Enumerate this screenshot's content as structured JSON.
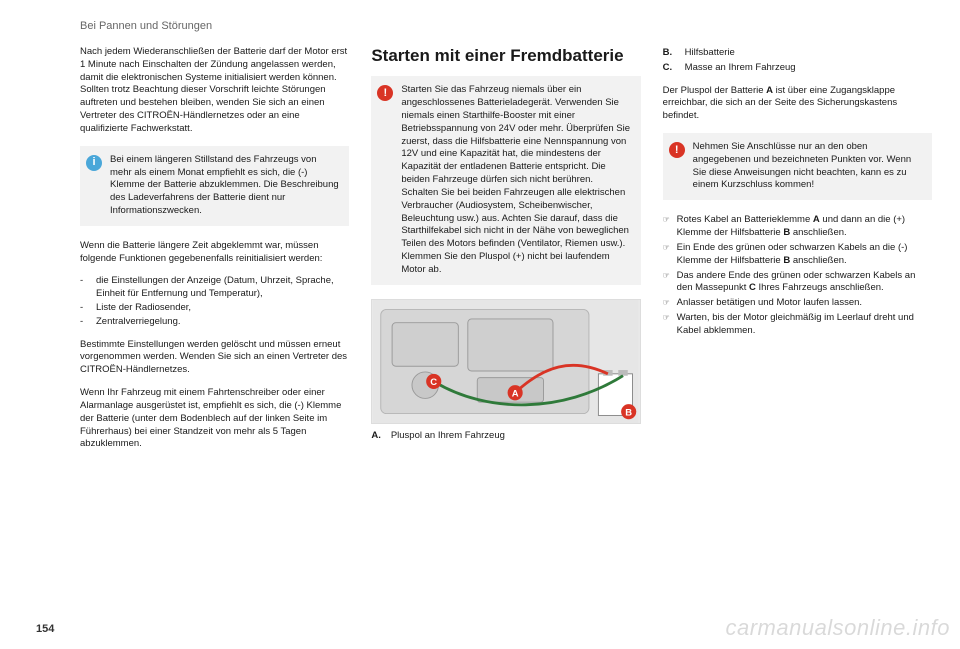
{
  "section_header": "Bei Pannen und Störungen",
  "page_number": "154",
  "watermark": "carmanualsonline.info",
  "col1": {
    "p1": "Nach jedem Wiederanschließen der Batterie darf der Motor erst 1 Minute nach Einschalten der Zündung angelassen werden, damit die elektronischen Systeme initialisiert werden können. Sollten trotz Beachtung dieser Vorschrift leichte Störungen auftreten und bestehen bleiben, wenden Sie sich an einen Vertreter des CITROËN-Händlernetzes oder an eine qualifizierte Fachwerkstatt.",
    "infobox": "Bei einem längeren Stillstand des Fahrzeugs von mehr als einem Monat empfiehlt es sich, die (-) Klemme der Batterie abzuklemmen. Die Beschreibung des Ladeverfahrens der Batterie dient nur Informationszwecken.",
    "p2": "Wenn die Batterie längere Zeit abgeklemmt war, müssen folgende Funktionen gegebenenfalls reinitialisiert werden:",
    "list": [
      "die Einstellungen der Anzeige (Datum, Uhrzeit, Sprache, Einheit für Entfernung und Temperatur),",
      "Liste der Radiosender,",
      "Zentralverriegelung."
    ],
    "p3": "Bestimmte Einstellungen werden gelöscht und müssen erneut vorgenommen werden. Wenden Sie sich an einen Vertreter des CITROËN-Händlernetzes.",
    "p4": "Wenn Ihr Fahrzeug mit einem Fahrtenschreiber oder einer Alarmanlage ausgerüstet ist, empfiehlt es sich, die (-) Klemme der Batterie (unter dem Bodenblech auf der linken Seite im Führerhaus) bei einer Standzeit von mehr als 5 Tagen abzuklemmen."
  },
  "col2": {
    "heading": "Starten mit einer Fremdbatterie",
    "warnbox": "Starten Sie das Fahrzeug niemals über ein angeschlossenes Batterieladegerät. Verwenden Sie niemals einen Starthilfe-Booster mit einer Betriebsspannung von 24V oder mehr. Überprüfen Sie zuerst, dass die Hilfsbatterie eine Nennspannung von 12V und eine Kapazität hat, die mindestens der Kapazität der entladenen Batterie entspricht. Die beiden Fahrzeuge dürfen sich nicht berühren. Schalten Sie bei beiden Fahrzeugen alle elektrischen Verbraucher (Audiosystem, Scheibenwischer, Beleuchtung usw.) aus. Achten Sie darauf, dass die Starthilfekabel sich nicht in der Nähe von beweglichen Teilen des Motors befinden (Ventilator, Riemen usw.). Klemmen Sie den Pluspol (+) nicht bei laufendem Motor ab.",
    "caption_key": "A.",
    "caption_text": "Pluspol an Ihrem Fahrzeug",
    "figure": {
      "bg": "#e6e6e6",
      "engine_fill": "#cfcfcf",
      "engine_stroke": "#9a9a9a",
      "cable_red": "#d93425",
      "cable_green": "#2f7a3a",
      "label_A": {
        "text": "A",
        "fill": "#d93425"
      },
      "label_B": {
        "text": "B",
        "fill": "#d93425"
      },
      "label_C": {
        "text": "C",
        "fill": "#d93425"
      },
      "aux_batt_fill": "#ffffff",
      "aux_batt_stroke": "#888"
    }
  },
  "col3": {
    "defs": [
      {
        "key": "B.",
        "val": "Hilfsbatterie"
      },
      {
        "key": "C.",
        "val": "Masse an Ihrem Fahrzeug"
      }
    ],
    "p1a": "Der Pluspol der Batterie ",
    "p1b": "A",
    "p1c": " ist über eine Zugangsklappe erreichbar, die sich an der Seite des Sicherungskastens befindet.",
    "warnbox": "Nehmen Sie Anschlüsse nur an den oben angegebenen und bezeichneten Punkten vor. Wenn Sie diese Anweisungen nicht beachten, kann es zu einem Kurzschluss kommen!",
    "steps_html": [
      "Rotes Kabel an Batterieklemme <b>A</b> und dann an die (+) Klemme der Hilfsbatterie <b>B</b> anschließen.",
      "Ein Ende des grünen oder schwarzen Kabels an die (-) Klemme der Hilfsbatterie <b>B</b> anschließen.",
      "Das andere Ende des grünen oder schwarzen Kabels an den Massepunkt <b>C</b> Ihres Fahrzeugs anschließen.",
      "Anlasser betätigen und Motor laufen lassen.",
      "Warten, bis der Motor gleichmäßig im Leerlauf dreht und Kabel abklemmen."
    ]
  }
}
